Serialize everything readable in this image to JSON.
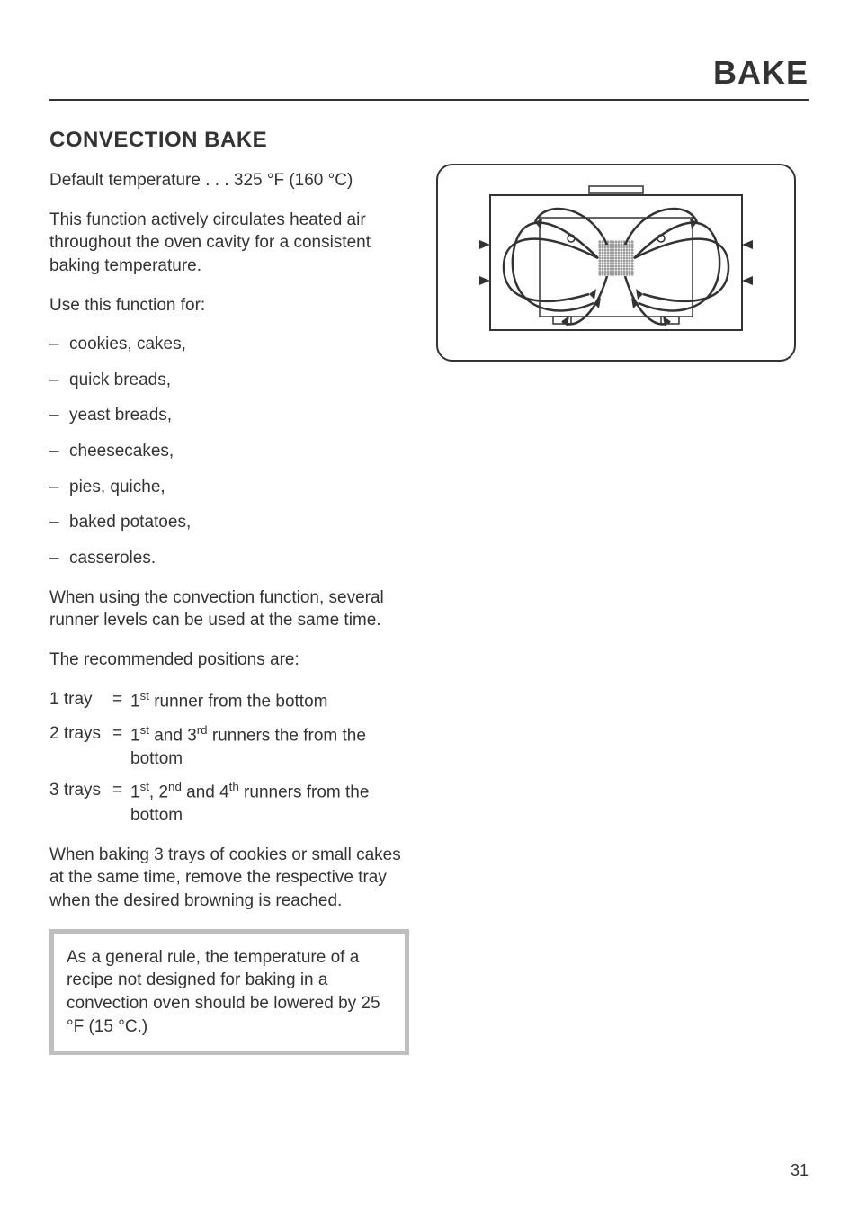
{
  "header": {
    "title": "BAKE"
  },
  "section": {
    "title": "CONVECTION BAKE",
    "default_temp_line": "Default temperature . . . 325 °F (160 °C)",
    "intro": "This function actively circulates heated air throughout the oven cavity for a consistent baking temperature.",
    "use_label": "Use this function for:",
    "use_items": [
      "cookies, cakes,",
      "quick breads,",
      "yeast breads,",
      "cheesecakes,",
      "pies, quiche,",
      "baked potatoes,",
      "casseroles."
    ],
    "convection_para": "When using the convection function, several runner levels can be used at the same time.",
    "rec_label": "The recommended positions are:",
    "trays": [
      {
        "label": "1 tray",
        "desc_html": "1<sup>st</sup> runner from the bottom"
      },
      {
        "label": "2 trays",
        "desc_html": "1<sup>st</sup> and 3<sup>rd</sup> runners the from the bottom"
      },
      {
        "label": "3 trays",
        "desc_html": "1<sup>st</sup>, 2<sup>nd</sup> and 4<sup>th</sup> runners from the bottom"
      }
    ],
    "cookies_para": "When baking 3 trays of cookies or small cakes at the same time, remove the respective tray when the desired browning is reached.",
    "note": "As a general rule, the temperature of a recipe not designed for baking in a convection oven should be lowered by 25 °F (15 °C.)"
  },
  "page_number": "31",
  "colors": {
    "text": "#333333",
    "note_border": "#bfbfbf",
    "background": "#ffffff",
    "diagram_stroke": "#333333"
  },
  "typography": {
    "header_fontsize": 36,
    "section_title_fontsize": 24,
    "body_fontsize": 19
  }
}
